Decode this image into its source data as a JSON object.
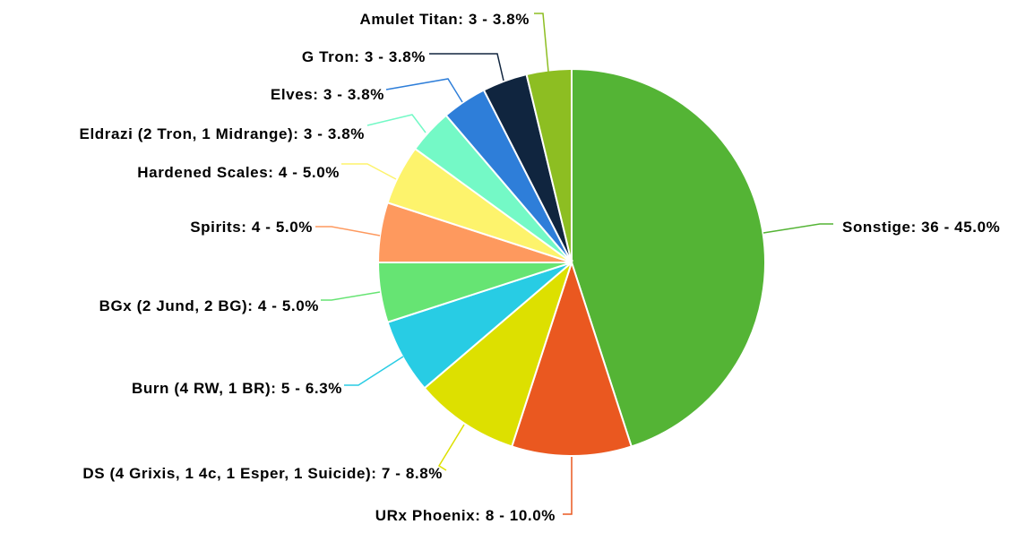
{
  "chart_data": {
    "type": "pie",
    "title": "",
    "start": "12 o'clock",
    "direction": "clockwise",
    "slices": [
      {
        "name": "Sonstige",
        "value": 36,
        "percent": "45.0%",
        "color": "#54b435",
        "label": "Sonstige: 36 - 45.0%"
      },
      {
        "name": "URx Phoenix",
        "value": 8,
        "percent": "10.0%",
        "color": "#ea5820",
        "label": "URx Phoenix: 8 - 10.0%"
      },
      {
        "name": "DS (4 Grixis, 1 4c, 1 Esper, 1 Suicide)",
        "value": 7,
        "percent": "8.8%",
        "color": "#dde000",
        "label": "DS (4 Grixis, 1 4c, 1 Esper, 1 Suicide): 7 - 8.8%"
      },
      {
        "name": "Burn (4 RW, 1 BR)",
        "value": 5,
        "percent": "6.3%",
        "color": "#28cce4",
        "label": "Burn (4 RW, 1 BR): 5 - 6.3%"
      },
      {
        "name": "BGx (2 Jund, 2 BG)",
        "value": 4,
        "percent": "5.0%",
        "color": "#66e473",
        "label": "BGx (2 Jund, 2 BG): 4 - 5.0%"
      },
      {
        "name": "Spirits",
        "value": 4,
        "percent": "5.0%",
        "color": "#fe995e",
        "label": "Spirits: 4 - 5.0%"
      },
      {
        "name": "Hardened Scales",
        "value": 4,
        "percent": "5.0%",
        "color": "#fdf36c",
        "label": "Hardened Scales: 4 - 5.0%"
      },
      {
        "name": "Eldrazi (2 Tron, 1 Midrange)",
        "value": 3,
        "percent": "3.8%",
        "color": "#74f9c6",
        "label": "Eldrazi (2 Tron, 1 Midrange): 3 - 3.8%"
      },
      {
        "name": "Elves",
        "value": 3,
        "percent": "3.8%",
        "color": "#2e7ed9",
        "label": "Elves: 3 - 3.8%"
      },
      {
        "name": "G Tron",
        "value": 3,
        "percent": "3.8%",
        "color": "#10253f",
        "label": "G Tron: 3 - 3.8%"
      },
      {
        "name": "Amulet Titan",
        "value": 3,
        "percent": "3.8%",
        "color": "#8dbe22",
        "label": "Amulet Titan: 3 - 3.8%"
      }
    ]
  }
}
